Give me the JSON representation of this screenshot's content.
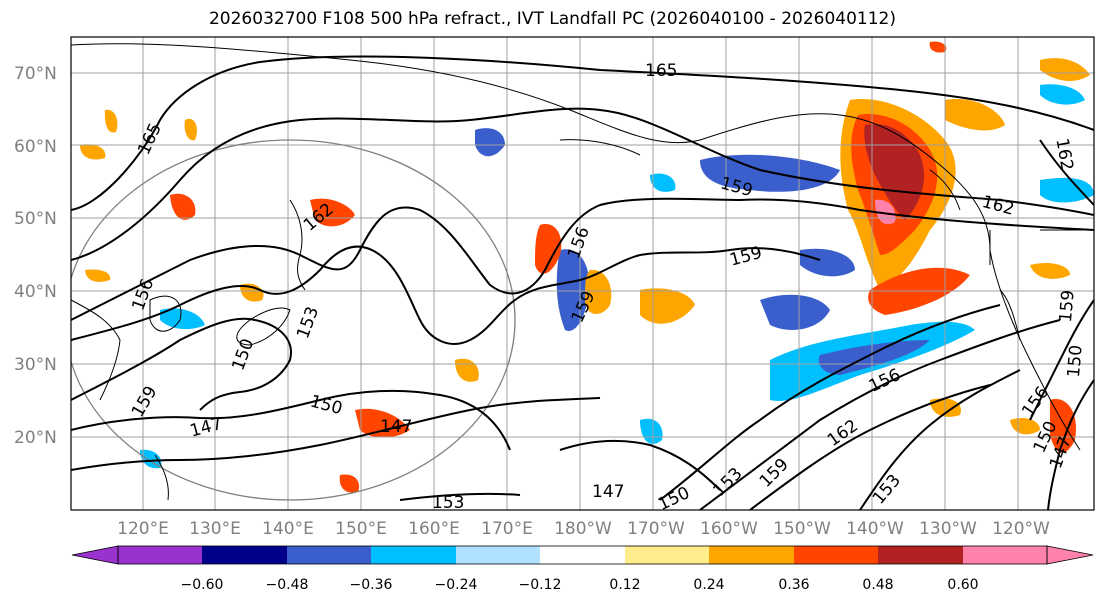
{
  "title": "2026032700 F108 500 hPa refract., IVT Landfall PC (2026040100 - 2026040112)",
  "lat_labels": [
    "70°N",
    "60°N",
    "50°N",
    "40°N",
    "30°N",
    "20°N"
  ],
  "lon_labels": [
    "120°E",
    "130°E",
    "140°E",
    "150°E",
    "160°E",
    "170°E",
    "180°W",
    "170°W",
    "160°W",
    "150°W",
    "140°W",
    "130°W",
    "120°W"
  ],
  "colorbar": {
    "ticks": [
      "−0.60",
      "−0.48",
      "−0.36",
      "−0.24",
      "−0.12",
      "0.12",
      "0.24",
      "0.36",
      "0.48",
      "0.60"
    ],
    "colors": [
      "#9a32cd",
      "#00008b",
      "#3a5fcd",
      "#00bfff",
      "#b0e2ff",
      "#ffffff",
      "#ffec8b",
      "#ffa500",
      "#ff4500",
      "#b22222",
      "#ff82ab"
    ]
  },
  "contour_labels": [
    "165",
    "165",
    "159",
    "162",
    "159",
    "156",
    "162",
    "150",
    "147",
    "150",
    "147",
    "153",
    "147",
    "150",
    "153",
    "159",
    "162",
    "156",
    "153",
    "156",
    "150",
    "147",
    "159",
    "159",
    "159",
    "153",
    "150",
    "162",
    "156"
  ]
}
